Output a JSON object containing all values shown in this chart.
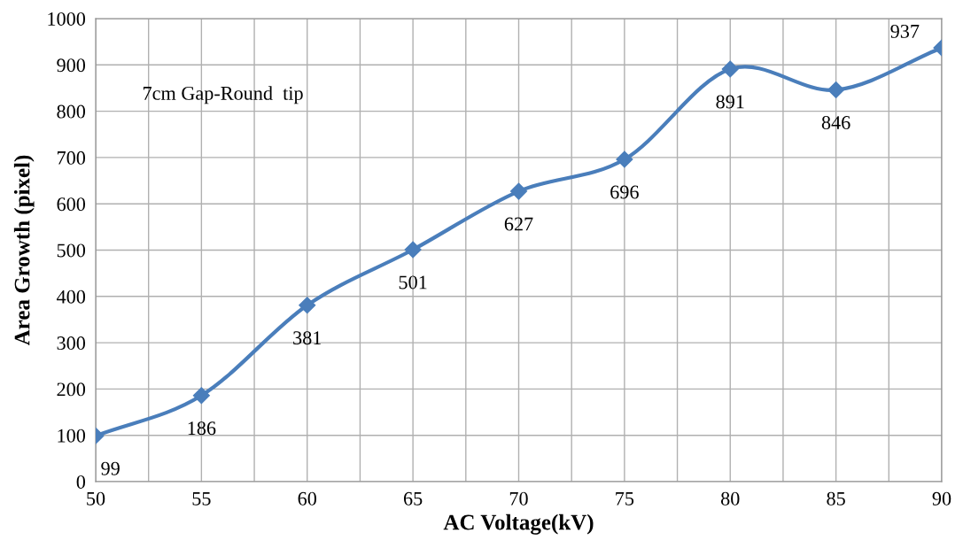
{
  "chart_data": {
    "type": "line",
    "xlabel": "AC Voltage(kV)",
    "ylabel": "Area Growth (pixel)",
    "annotations": [
      "7cm Gap-Round  tip"
    ],
    "x": [
      50,
      55,
      60,
      65,
      70,
      75,
      80,
      85,
      90
    ],
    "series": [
      {
        "color": "#4a7ebb",
        "values": [
          99,
          186,
          381,
          501,
          627,
          696,
          891,
          846,
          937
        ]
      }
    ],
    "xlim": [
      50,
      90
    ],
    "xticks": [
      50,
      {
        "value": 52.5,
        "label": null
      },
      55,
      {
        "value": 57.5,
        "label": null
      },
      60,
      {
        "value": 62.5,
        "label": null
      },
      65,
      {
        "value": 67.5,
        "label": null
      },
      70,
      {
        "value": 72.5,
        "label": null
      },
      75,
      {
        "value": 77.5,
        "label": null
      },
      80,
      {
        "value": 82.5,
        "label": null
      },
      85,
      {
        "value": 87.5,
        "label": null
      },
      90
    ],
    "ylim": [
      0,
      1000
    ],
    "yticks": [
      0,
      100,
      200,
      300,
      400,
      500,
      600,
      700,
      800,
      900,
      1000
    ],
    "grid": true,
    "marker": "diamond",
    "line_style": "solid",
    "data_labels": true
  }
}
